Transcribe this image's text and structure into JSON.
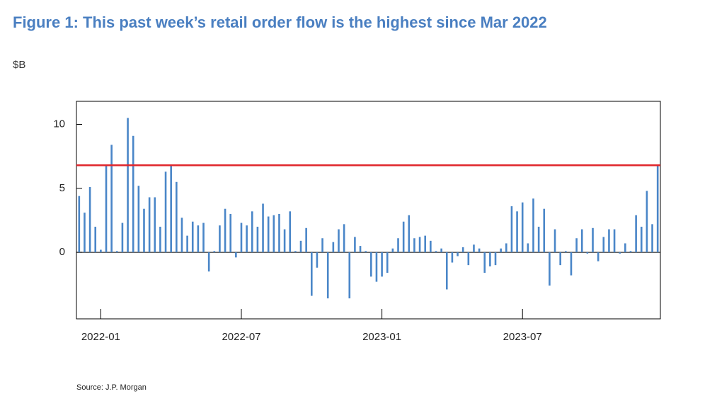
{
  "chart_data": {
    "type": "bar",
    "title": "Figure 1: This past week’s retail order flow is the highest since Mar 2022",
    "y_label": "$B",
    "source": "Source: J.P. Morgan",
    "color": "#4a86c8",
    "reference_line": {
      "value": 6.8,
      "color": "#e0262b"
    },
    "ylim": [
      -5.2,
      11.8
    ],
    "yticks": [
      0,
      5,
      10
    ],
    "categories": [
      null,
      null,
      null,
      null,
      "2022-01",
      null,
      null,
      null,
      null,
      null,
      null,
      null,
      null,
      null,
      null,
      null,
      null,
      null,
      null,
      null,
      null,
      null,
      null,
      null,
      null,
      null,
      null,
      null,
      null,
      null,
      "2022-07",
      null,
      null,
      null,
      null,
      null,
      null,
      null,
      null,
      null,
      null,
      null,
      null,
      null,
      null,
      null,
      null,
      null,
      null,
      null,
      null,
      null,
      null,
      null,
      null,
      null,
      "2023-01",
      null,
      null,
      null,
      null,
      null,
      null,
      null,
      null,
      null,
      null,
      null,
      null,
      null,
      null,
      null,
      null,
      null,
      null,
      null,
      null,
      null,
      null,
      null,
      null,
      null,
      "2023-07",
      null,
      null,
      null,
      null,
      null,
      null,
      null,
      null,
      null,
      null,
      null,
      null,
      null,
      null,
      null,
      null,
      null,
      null,
      null,
      null,
      null,
      null,
      null,
      null,
      null
    ],
    "values": [
      4.4,
      3.1,
      5.1,
      2.0,
      0.2,
      6.8,
      8.4,
      0.1,
      2.3,
      10.5,
      9.1,
      5.2,
      3.4,
      4.3,
      4.3,
      2.0,
      6.3,
      6.8,
      5.5,
      2.7,
      1.3,
      2.4,
      2.1,
      2.3,
      -1.5,
      0.1,
      2.1,
      3.4,
      3.0,
      -0.4,
      2.3,
      2.1,
      3.2,
      2.0,
      3.8,
      2.8,
      2.9,
      3.0,
      1.8,
      3.2,
      0.1,
      0.9,
      1.9,
      -3.4,
      -1.2,
      1.1,
      -3.6,
      0.8,
      1.8,
      2.2,
      -3.6,
      1.2,
      0.5,
      0.1,
      -1.9,
      -2.3,
      -1.9,
      -1.6,
      0.3,
      1.1,
      2.4,
      2.9,
      1.1,
      1.2,
      1.3,
      0.9,
      0.1,
      0.3,
      -2.9,
      -0.8,
      -0.3,
      0.4,
      -1.0,
      0.6,
      0.3,
      -1.6,
      -1.1,
      -1.0,
      0.3,
      0.7,
      3.6,
      3.2,
      3.9,
      0.7,
      4.2,
      2.0,
      3.4,
      -2.6,
      1.8,
      -1.0,
      0.1,
      -1.8,
      1.1,
      1.8,
      -0.1,
      1.9,
      -0.7,
      1.2,
      1.8,
      1.8,
      -0.1,
      0.7,
      0.1,
      2.9,
      2.0,
      4.8,
      2.2,
      6.8
    ]
  }
}
